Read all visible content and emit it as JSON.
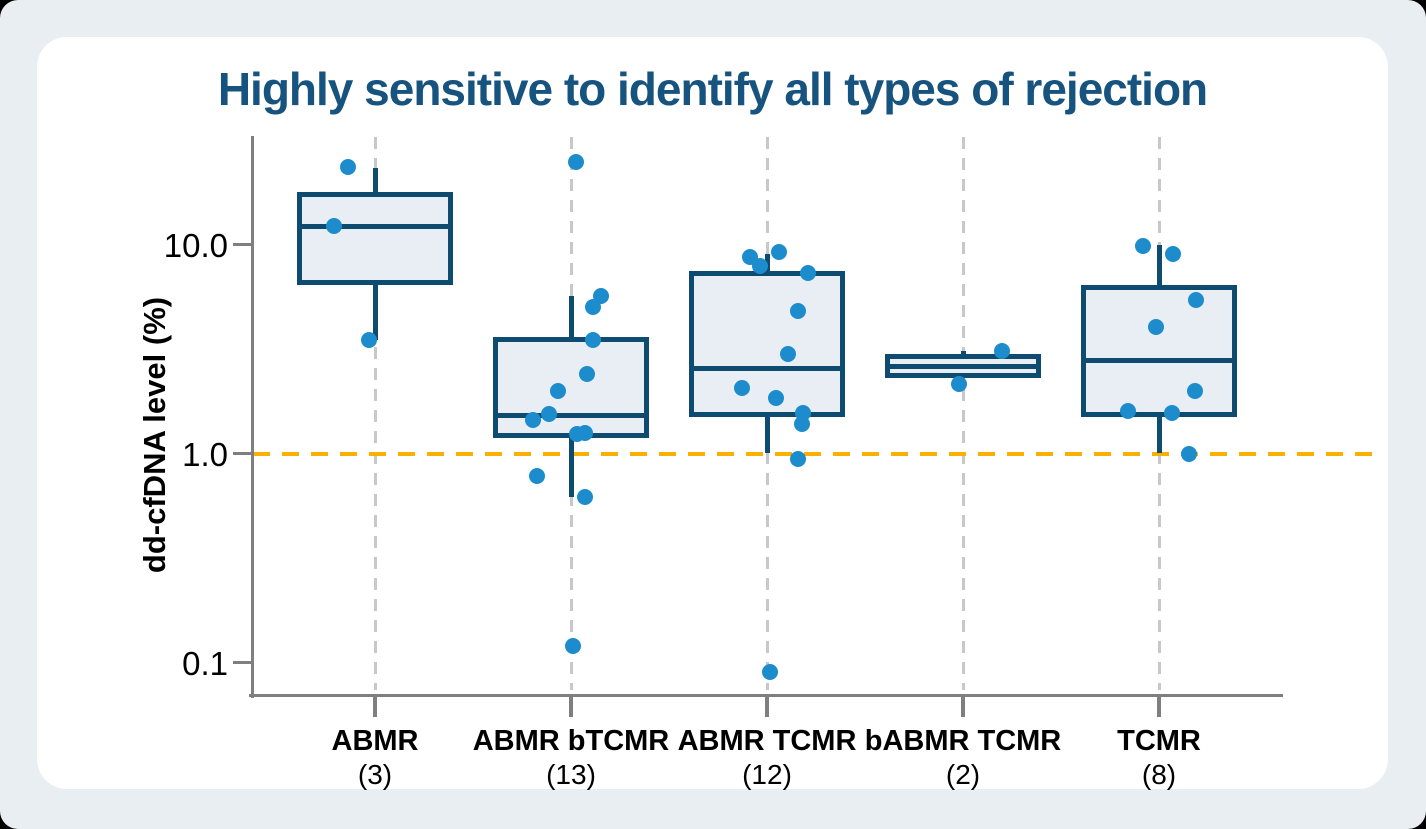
{
  "title": "Highly sensitive to identify all types of rejection",
  "colors": {
    "page_bg": "#E9EEF3",
    "card_bg": "#FFFFFF",
    "title": "#16537E",
    "box_border": "#0E4B70",
    "box_fill": "#E9EEF4",
    "dot": "#1D8CCD",
    "threshold_line": "#F9B000",
    "axis": "#7F7F7F",
    "gridline": "#C8C8C8",
    "text": "#000000"
  },
  "chart_data": {
    "type": "box",
    "title": "Highly sensitive to identify all types of rejection",
    "ylabel": "dd-cfDNA level (%)",
    "xlabel": "",
    "yscale": "log",
    "ylim": [
      0.07,
      33
    ],
    "yticks": [
      10.0,
      1.0,
      0.1
    ],
    "ytick_labels": [
      "10.0",
      "1.0",
      "0.1"
    ],
    "threshold_value": 1.0,
    "grid": "dashed-vertical-per-category",
    "legend": "none",
    "categories": [
      "ABMR",
      "ABMR bTCMR",
      "ABMR TCMR",
      "bABMR TCMR",
      "TCMR"
    ],
    "counts": [
      3,
      13,
      12,
      2,
      8
    ],
    "count_labels": [
      "(3)",
      "(13)",
      "(12)",
      "(2)",
      "(8)"
    ],
    "series": [
      {
        "name": "ABMR",
        "count_label": "(3)",
        "box": {
          "whisker_high": 23.3,
          "q3": 17.3,
          "median": 12.2,
          "q1": 6.6,
          "whisker_low": 3.5
        },
        "points": [
          {
            "v": 23.4,
            "dx": -27
          },
          {
            "v": 12.2,
            "dx": -41
          },
          {
            "v": 3.5,
            "dx": -6
          }
        ]
      },
      {
        "name": "ABMR bTCMR",
        "count_label": "(13)",
        "box": {
          "whisker_high": 5.7,
          "q3": 3.5,
          "median": 1.52,
          "q1": 1.22,
          "whisker_low": 0.62
        },
        "points": [
          {
            "v": 24.9,
            "dx": 5
          },
          {
            "v": 5.7,
            "dx": 30
          },
          {
            "v": 5.0,
            "dx": 22
          },
          {
            "v": 3.5,
            "dx": 22
          },
          {
            "v": 2.4,
            "dx": 16
          },
          {
            "v": 2.0,
            "dx": -13
          },
          {
            "v": 1.54,
            "dx": -22
          },
          {
            "v": 1.45,
            "dx": -38
          },
          {
            "v": 1.26,
            "dx": 14
          },
          {
            "v": 1.24,
            "dx": 6
          },
          {
            "v": 0.78,
            "dx": -34
          },
          {
            "v": 0.62,
            "dx": 14
          },
          {
            "v": 0.12,
            "dx": 2
          }
        ]
      },
      {
        "name": "ABMR TCMR",
        "count_label": "(12)",
        "box": {
          "whisker_high": 9.0,
          "q3": 7.3,
          "median": 2.55,
          "q1": 1.54,
          "whisker_low": 1.0
        },
        "points": [
          {
            "v": 9.2,
            "dx": 12
          },
          {
            "v": 8.7,
            "dx": -17
          },
          {
            "v": 7.9,
            "dx": -7
          },
          {
            "v": 7.3,
            "dx": 41
          },
          {
            "v": 4.8,
            "dx": 31
          },
          {
            "v": 3.0,
            "dx": 21
          },
          {
            "v": 2.05,
            "dx": -25
          },
          {
            "v": 1.85,
            "dx": 9
          },
          {
            "v": 1.57,
            "dx": 36
          },
          {
            "v": 1.38,
            "dx": 35
          },
          {
            "v": 0.94,
            "dx": 31
          },
          {
            "v": 0.09,
            "dx": 3
          }
        ]
      },
      {
        "name": "bABMR TCMR",
        "count_label": "(2)",
        "box": {
          "whisker_high": 3.1,
          "q3": 2.9,
          "median": 2.62,
          "q1": 2.35,
          "whisker_low": 2.35
        },
        "points": [
          {
            "v": 3.1,
            "dx": 39
          },
          {
            "v": 2.16,
            "dx": -4
          }
        ]
      },
      {
        "name": "TCMR",
        "count_label": "(8)",
        "box": {
          "whisker_high": 10.0,
          "q3": 6.2,
          "median": 2.8,
          "q1": 1.54,
          "whisker_low": 1.0
        },
        "points": [
          {
            "v": 9.8,
            "dx": -16
          },
          {
            "v": 9.0,
            "dx": 14
          },
          {
            "v": 5.4,
            "dx": 37
          },
          {
            "v": 4.05,
            "dx": -3
          },
          {
            "v": 2.0,
            "dx": 36
          },
          {
            "v": 1.6,
            "dx": -31
          },
          {
            "v": 1.57,
            "dx": 13
          },
          {
            "v": 1.0,
            "dx": 30
          }
        ]
      }
    ]
  }
}
